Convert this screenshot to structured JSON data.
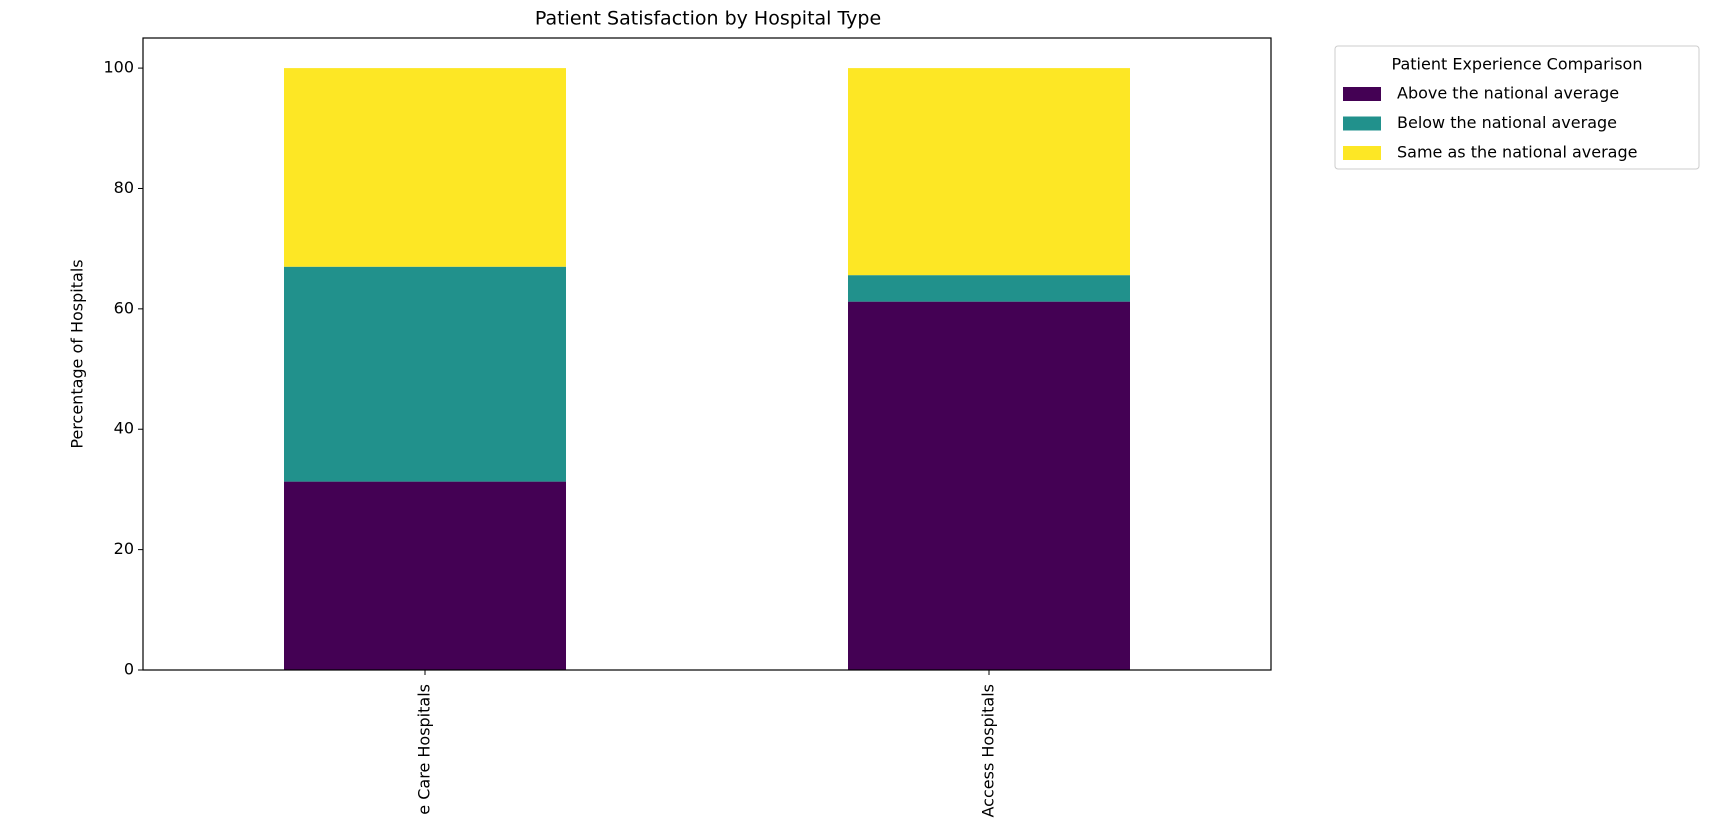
{
  "chart_data": {
    "type": "stacked_bar",
    "title": "Patient Satisfaction by Hospital Type",
    "y_label": "Percentage of Hospitals",
    "categories": [
      "e Care Hospitals",
      "Access Hospitals"
    ],
    "series": [
      {
        "name": "Above the national average",
        "color": "#440154",
        "values": [
          31.3,
          61.2
        ]
      },
      {
        "name": "Below the national average",
        "color": "#21918c",
        "values": [
          35.7,
          4.4
        ]
      },
      {
        "name": "Same as the national average",
        "color": "#fde725",
        "values": [
          33.0,
          34.4
        ]
      }
    ],
    "ylim": [
      0,
      105
    ],
    "yticks": [
      0,
      20,
      40,
      60,
      80,
      100
    ],
    "legend_title": "Patient Experience Comparison",
    "legend_position": "outside-upper-right"
  }
}
